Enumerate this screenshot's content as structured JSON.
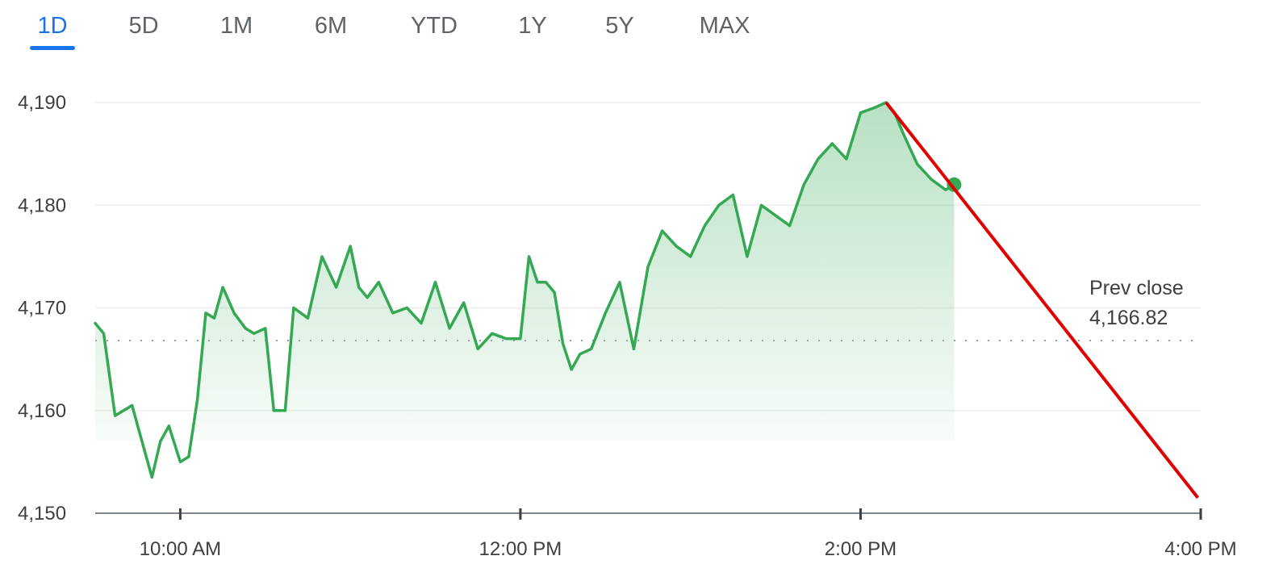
{
  "tabs": [
    {
      "label": "1D",
      "active": true
    },
    {
      "label": "5D",
      "active": false
    },
    {
      "label": "1M",
      "active": false
    },
    {
      "label": "6M",
      "active": false
    },
    {
      "label": "YTD",
      "active": false
    },
    {
      "label": "1Y",
      "active": false
    },
    {
      "label": "5Y",
      "active": false
    },
    {
      "label": "MAX",
      "active": false
    }
  ],
  "colors": {
    "line": "#34a853",
    "accent": "#1a73e8",
    "annotation": "#e00000",
    "grid": "#eeeeee",
    "text": "#3c4043"
  },
  "chart_data": {
    "type": "line",
    "y_ticks": [
      4150,
      4160,
      4170,
      4180,
      4190
    ],
    "y_tick_labels": [
      "4,150",
      "4,160",
      "4,170",
      "4,180",
      "4,190"
    ],
    "ylim": [
      4150,
      4190
    ],
    "x_ticks": [
      "10:00 AM",
      "12:00 PM",
      "2:00 PM",
      "4:00 PM"
    ],
    "x_range": [
      "9:30 AM",
      "4:00 PM"
    ],
    "grid": true,
    "prev_close": {
      "label": "Prev close",
      "value": "4,166.82",
      "numeric": 4166.82
    },
    "series": [
      {
        "x": [
          "9:30",
          "9:33",
          "9:37",
          "9:40",
          "9:43",
          "9:46",
          "9:50",
          "9:53",
          "9:56",
          "10:00",
          "10:03",
          "10:06",
          "10:09",
          "10:12",
          "10:15",
          "10:19",
          "10:23",
          "10:26",
          "10:30",
          "10:33",
          "10:37",
          "10:40",
          "10:45",
          "10:50",
          "10:55",
          "11:00",
          "11:03",
          "11:06",
          "11:10",
          "11:15",
          "11:20",
          "11:25",
          "11:30",
          "11:35",
          "11:40",
          "11:45",
          "11:50",
          "11:55",
          "12:00",
          "12:03",
          "12:06",
          "12:09",
          "12:12",
          "12:15",
          "12:18",
          "12:21",
          "12:25",
          "12:30",
          "12:35",
          "12:40",
          "12:45",
          "12:50",
          "12:55",
          "13:00",
          "13:05",
          "13:10",
          "13:15",
          "13:20",
          "13:25",
          "13:30",
          "13:35",
          "13:40",
          "13:45",
          "13:50",
          "13:55",
          "14:00",
          "14:05",
          "14:09",
          "14:12",
          "14:15",
          "14:20",
          "14:25",
          "14:30",
          "14:33"
        ],
        "values": [
          4168.5,
          4167.5,
          4159.5,
          4160.0,
          4160.5,
          4157.5,
          4153.5,
          4157.0,
          4158.5,
          4155.0,
          4155.5,
          4161.0,
          4169.5,
          4169.0,
          4172.0,
          4169.5,
          4168.0,
          4167.5,
          4168.0,
          4160.0,
          4160.0,
          4170.0,
          4169.0,
          4175.0,
          4172.0,
          4176.0,
          4172.0,
          4171.0,
          4172.5,
          4169.5,
          4170.0,
          4168.5,
          4172.5,
          4168.0,
          4170.5,
          4166.0,
          4167.5,
          4167.0,
          4167.0,
          4175.0,
          4172.5,
          4172.5,
          4171.5,
          4166.5,
          4164.0,
          4165.5,
          4166.0,
          4169.5,
          4172.5,
          4166.0,
          4174.0,
          4177.5,
          4176.0,
          4175.0,
          4178.0,
          4180.0,
          4181.0,
          4175.0,
          4180.0,
          4179.0,
          4178.0,
          4182.0,
          4184.5,
          4186.0,
          4184.5,
          4189.0,
          4189.5,
          4190.0,
          4189.0,
          4187.0,
          4184.0,
          4182.5,
          4181.5,
          4182.0
        ]
      }
    ],
    "annotation": {
      "type": "trend-line",
      "from": {
        "x": "14:09",
        "y": 4190.0
      },
      "to": {
        "x": "15:59",
        "y": 4151.5
      }
    }
  }
}
